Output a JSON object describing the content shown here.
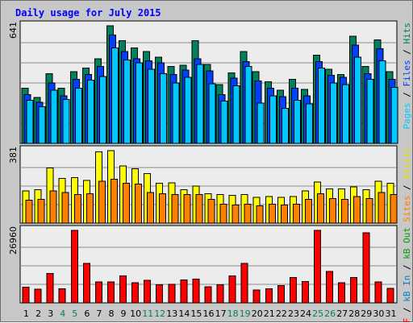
{
  "title": "Daily usage for July 2015",
  "colors": {
    "hits": "#00805c",
    "files": "#0040ff",
    "pages": "#00c8ff",
    "visits": "#ffff00",
    "sites": "#ff8000",
    "kb_in": "#0080c0",
    "kb_out": "#00a000",
    "kb_f": "#ff0000",
    "weekend_label": "#00805c",
    "weekday_label": "#000000"
  },
  "legends": {
    "top": [
      {
        "text": "Pages",
        "color": "#00c8ff"
      },
      {
        "text": " / ",
        "color": "#000000"
      },
      {
        "text": "Files",
        "color": "#0040ff"
      },
      {
        "text": " / ",
        "color": "#000000"
      },
      {
        "text": "Hits",
        "color": "#00805c"
      }
    ],
    "middle": [
      {
        "text": "Sites",
        "color": "#ff8000"
      },
      {
        "text": " / ",
        "color": "#000000"
      },
      {
        "text": "Visits",
        "color": "#e0e000"
      }
    ],
    "bottom": [
      {
        "text": "kB F",
        "color": "#ff0000"
      },
      {
        "text": " / ",
        "color": "#000000"
      },
      {
        "text": "kB In",
        "color": "#0080c0"
      },
      {
        "text": " / ",
        "color": "#000000"
      },
      {
        "text": "kB Out",
        "color": "#00a000"
      }
    ]
  },
  "chart_data": [
    {
      "type": "bar",
      "title": "Daily usage for July 2015",
      "categories": [
        "1",
        "2",
        "3",
        "4",
        "5",
        "6",
        "7",
        "8",
        "9",
        "10",
        "11",
        "12",
        "13",
        "14",
        "15",
        "16",
        "17",
        "18",
        "19",
        "20",
        "21",
        "22",
        "23",
        "24",
        "25",
        "26",
        "27",
        "28",
        "29",
        "30",
        "31"
      ],
      "weekend_days": [
        "4",
        "5",
        "11",
        "12",
        "18",
        "19",
        "25",
        "26"
      ],
      "ylabel_top": "641",
      "ylim": [
        0,
        641
      ],
      "series": [
        {
          "name": "Hits",
          "values": [
            300,
            250,
            380,
            300,
            390,
            410,
            460,
            641,
            560,
            520,
            500,
            470,
            420,
            425,
            560,
            430,
            320,
            385,
            500,
            390,
            335,
            290,
            350,
            295,
            480,
            405,
            375,
            585,
            420,
            565,
            390
          ]
        },
        {
          "name": "Files",
          "values": [
            265,
            225,
            330,
            260,
            350,
            375,
            420,
            590,
            500,
            460,
            450,
            440,
            375,
            400,
            460,
            395,
            265,
            355,
            445,
            340,
            300,
            255,
            300,
            260,
            445,
            370,
            360,
            535,
            380,
            515,
            350
          ]
        },
        {
          "name": "Pages",
          "values": [
            235,
            200,
            290,
            240,
            300,
            345,
            365,
            520,
            455,
            440,
            405,
            380,
            330,
            360,
            430,
            325,
            230,
            315,
            420,
            220,
            260,
            190,
            235,
            215,
            410,
            330,
            320,
            470,
            350,
            450,
            305
          ]
        }
      ]
    },
    {
      "type": "bar",
      "categories": [
        "1",
        "2",
        "3",
        "4",
        "5",
        "6",
        "7",
        "8",
        "9",
        "10",
        "11",
        "12",
        "13",
        "14",
        "15",
        "16",
        "17",
        "18",
        "19",
        "20",
        "21",
        "22",
        "23",
        "24",
        "25",
        "26",
        "27",
        "28",
        "29",
        "30",
        "31"
      ],
      "ylabel_top": "381",
      "ylim": [
        0,
        381
      ],
      "series": [
        {
          "name": "Visits",
          "values": [
            170,
            175,
            290,
            235,
            240,
            225,
            375,
            381,
            300,
            285,
            260,
            210,
            211,
            175,
            195,
            155,
            150,
            145,
            150,
            135,
            140,
            135,
            140,
            170,
            215,
            180,
            180,
            190,
            175,
            220,
            210
          ]
        },
        {
          "name": "Sites",
          "values": [
            120,
            125,
            170,
            160,
            150,
            155,
            220,
            230,
            210,
            205,
            160,
            155,
            150,
            150,
            150,
            125,
            100,
            95,
            100,
            90,
            100,
            95,
            100,
            125,
            155,
            130,
            125,
            140,
            130,
            160,
            150
          ]
        }
      ]
    },
    {
      "type": "bar",
      "categories": [
        "1",
        "2",
        "3",
        "4",
        "5",
        "6",
        "7",
        "8",
        "9",
        "10",
        "11",
        "12",
        "13",
        "14",
        "15",
        "16",
        "17",
        "18",
        "19",
        "20",
        "21",
        "22",
        "23",
        "24",
        "25",
        "26",
        "27",
        "28",
        "29",
        "30",
        "31"
      ],
      "ylabel_top": "26960",
      "ylim": [
        0,
        26960
      ],
      "series": [
        {
          "name": "kB F",
          "values": [
            5900,
            5100,
            10900,
            5300,
            26960,
            14700,
            7800,
            7800,
            10100,
            7500,
            8400,
            6700,
            6900,
            8600,
            8900,
            6000,
            6700,
            10100,
            14700,
            4800,
            5300,
            6500,
            9500,
            8000,
            26960,
            11700,
            7500,
            9400,
            26000,
            7800,
            5400
          ]
        }
      ]
    }
  ]
}
